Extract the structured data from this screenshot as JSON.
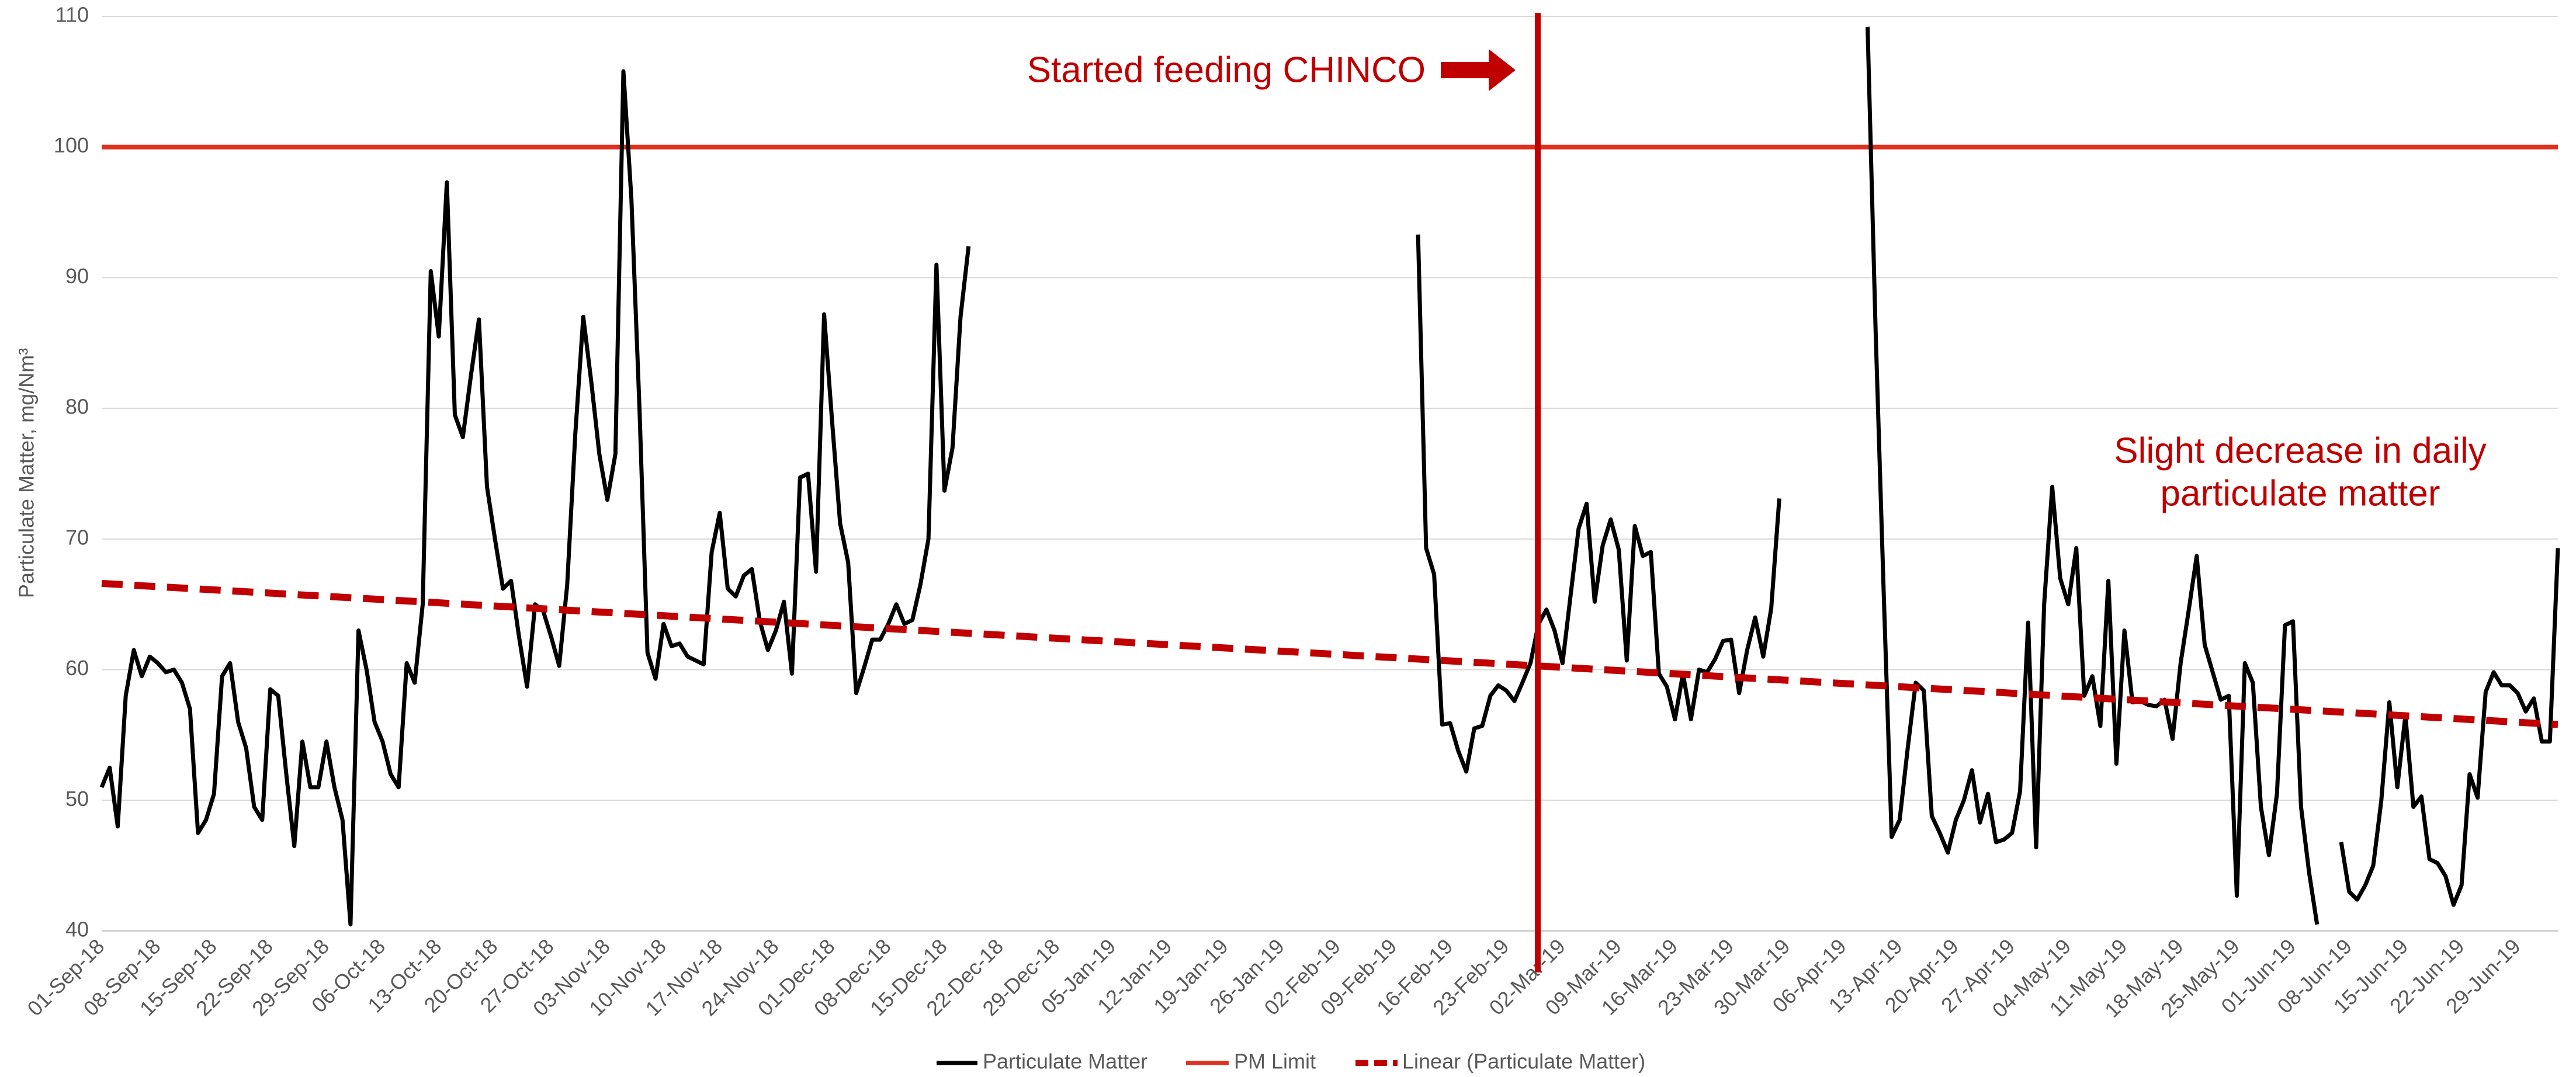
{
  "chart_data": {
    "type": "line",
    "y_label": "Particulate Matter, mg/Nm³",
    "ylim": [
      40,
      110
    ],
    "yticks": [
      40,
      50,
      60,
      70,
      80,
      90,
      100,
      110
    ],
    "grid": true,
    "annotations": [
      "Started feeding CHINCO",
      "Slight decrease in daily",
      "particulate matter"
    ],
    "annotation_color": "#c00000",
    "event_color": "#c00000",
    "categories": [
      "01-Sep-18",
      null,
      null,
      null,
      null,
      null,
      null,
      "08-Sep-18",
      null,
      null,
      null,
      null,
      null,
      null,
      "15-Sep-18",
      null,
      null,
      null,
      null,
      null,
      null,
      "22-Sep-18",
      null,
      null,
      null,
      null,
      null,
      null,
      "29-Sep-18",
      null,
      null,
      null,
      null,
      null,
      null,
      "06-Oct-18",
      null,
      null,
      null,
      null,
      null,
      null,
      "13-Oct-18",
      null,
      null,
      null,
      null,
      null,
      null,
      "20-Oct-18",
      null,
      null,
      null,
      null,
      null,
      null,
      "27-Oct-18",
      null,
      null,
      null,
      null,
      null,
      null,
      "03-Nov-18",
      null,
      null,
      null,
      null,
      null,
      null,
      "10-Nov-18",
      null,
      null,
      null,
      null,
      null,
      null,
      "17-Nov-18",
      null,
      null,
      null,
      null,
      null,
      null,
      "24-Nov-18",
      null,
      null,
      null,
      null,
      null,
      null,
      "01-Dec-18",
      null,
      null,
      null,
      null,
      null,
      null,
      "08-Dec-18",
      null,
      null,
      null,
      null,
      null,
      null,
      "15-Dec-18",
      null,
      null,
      null,
      null,
      null,
      null,
      "22-Dec-18",
      null,
      null,
      null,
      null,
      null,
      null,
      "29-Dec-18",
      null,
      null,
      null,
      null,
      null,
      null,
      "05-Jan-19",
      null,
      null,
      null,
      null,
      null,
      null,
      "12-Jan-19",
      null,
      null,
      null,
      null,
      null,
      null,
      "19-Jan-19",
      null,
      null,
      null,
      null,
      null,
      null,
      "26-Jan-19",
      null,
      null,
      null,
      null,
      null,
      null,
      "02-Feb-19",
      null,
      null,
      null,
      null,
      null,
      null,
      "09-Feb-19",
      null,
      null,
      null,
      null,
      null,
      null,
      "16-Feb-19",
      null,
      null,
      null,
      null,
      null,
      null,
      "23-Feb-19",
      null,
      null,
      null,
      null,
      null,
      null,
      "02-Mar-19",
      null,
      null,
      null,
      null,
      null,
      null,
      "09-Mar-19",
      null,
      null,
      null,
      null,
      null,
      null,
      "16-Mar-19",
      null,
      null,
      null,
      null,
      null,
      null,
      "23-Mar-19",
      null,
      null,
      null,
      null,
      null,
      null,
      "30-Mar-19",
      null,
      null,
      null,
      null,
      null,
      null,
      "06-Apr-19",
      null,
      null,
      null,
      null,
      null,
      null,
      "13-Apr-19",
      null,
      null,
      null,
      null,
      null,
      null,
      "20-Apr-19",
      null,
      null,
      null,
      null,
      null,
      null,
      "27-Apr-19",
      null,
      null,
      null,
      null,
      null,
      null,
      "04-May-19",
      null,
      null,
      null,
      null,
      null,
      null,
      "11-May-19",
      null,
      null,
      null,
      null,
      null,
      null,
      "18-May-19",
      null,
      null,
      null,
      null,
      null,
      null,
      "25-May-19",
      null,
      null,
      null,
      null,
      null,
      null,
      "01-Jun-19",
      null,
      null,
      null,
      null,
      null,
      null,
      "08-Jun-19",
      null,
      null,
      null,
      null,
      null,
      null,
      "15-Jun-19",
      null,
      null,
      null,
      null,
      null,
      null,
      "22-Jun-19",
      null,
      null,
      null,
      null,
      null,
      null,
      "29-Jun-19",
      null,
      null,
      null,
      null,
      null
    ],
    "series": [
      {
        "name": "Particulate Matter",
        "color": "#000000",
        "values": [
          51,
          52.5,
          48,
          58,
          61.5,
          59.5,
          61,
          60.5,
          59.8,
          60,
          59,
          57,
          47.5,
          48.5,
          50.5,
          59.5,
          60.5,
          56,
          54,
          49.5,
          48.5,
          58.5,
          58,
          52,
          46.5,
          54.5,
          51,
          51,
          54.5,
          51,
          48.5,
          40.5,
          63,
          60,
          56,
          54.5,
          52,
          51,
          60.5,
          59,
          65,
          90.5,
          85.5,
          97.3,
          79.5,
          77.8,
          82.5,
          86.8,
          74,
          70,
          66.2,
          66.8,
          62.5,
          58.7,
          65,
          64.5,
          62.5,
          60.3,
          66.5,
          78,
          87,
          82,
          76.5,
          73,
          76.5,
          105.8,
          96,
          80,
          61.3,
          59.3,
          63.5,
          61.8,
          62,
          61,
          60.7,
          60.4,
          69,
          72,
          66.2,
          65.6,
          67.2,
          67.7,
          63.7,
          61.5,
          63,
          65.2,
          59.7,
          74.7,
          75,
          67.5,
          87.2,
          79,
          71.2,
          68.2,
          58.2,
          60.2,
          62.3,
          62.3,
          63.5,
          65,
          63.5,
          63.8,
          66.5,
          70,
          91,
          73.7,
          77,
          87,
          92.4,
          null,
          null,
          null,
          null,
          null,
          null,
          null,
          null,
          null,
          null,
          null,
          null,
          null,
          null,
          null,
          null,
          null,
          null,
          null,
          null,
          null,
          null,
          null,
          null,
          null,
          null,
          null,
          null,
          null,
          null,
          null,
          null,
          null,
          null,
          null,
          null,
          null,
          null,
          null,
          null,
          null,
          null,
          null,
          null,
          null,
          null,
          null,
          null,
          null,
          null,
          null,
          null,
          null,
          null,
          null,
          93.3,
          69.3,
          67.3,
          55.8,
          55.9,
          53.8,
          52.2,
          55.5,
          55.7,
          58,
          58.8,
          58.4,
          57.6,
          59,
          60.5,
          63.5,
          64.6,
          63,
          60.5,
          65.7,
          70.8,
          72.7,
          65.2,
          69.5,
          71.5,
          69.2,
          60.7,
          71,
          68.7,
          69,
          59.7,
          58.7,
          56.2,
          59.7,
          56.2,
          60,
          59.8,
          60.8,
          62.2,
          62.3,
          58.2,
          61.5,
          64,
          61,
          64.7,
          73.1,
          null,
          null,
          null,
          null,
          null,
          null,
          null,
          null,
          null,
          null,
          109.2,
          86,
          66,
          47.2,
          48.5,
          54,
          59,
          58.4,
          48.8,
          47.5,
          46,
          48.5,
          50,
          52.3,
          48.3,
          50.5,
          46.8,
          47,
          47.5,
          50.7,
          63.6,
          46.4,
          65,
          74,
          67,
          65,
          69.3,
          58,
          59.5,
          55.7,
          66.8,
          52.8,
          63,
          57.5,
          57.6,
          57.3,
          57.2,
          57.7,
          54.7,
          60.5,
          64.5,
          68.7,
          61.9,
          59.8,
          57.7,
          58,
          42.7,
          60.5,
          59,
          49.5,
          45.8,
          50.5,
          63.4,
          63.7,
          49.5,
          44.5,
          40.5,
          null,
          null,
          46.8,
          43,
          42.4,
          43.5,
          45,
          50,
          57.5,
          51,
          56.5,
          49.5,
          50.3,
          45.5,
          45.2,
          44.2,
          42,
          43.5,
          52,
          50.2,
          58.3,
          59.8,
          58.8,
          58.8,
          58.2,
          56.8,
          57.8,
          54.5,
          54.5,
          69.3
        ]
      }
    ],
    "limit": {
      "name": "PM Limit",
      "value": 100,
      "color": "#e0301e"
    },
    "trendline": {
      "name": "Linear (Particulate Matter)",
      "color": "#c00000",
      "start": 66.6,
      "end": 55.8
    }
  }
}
